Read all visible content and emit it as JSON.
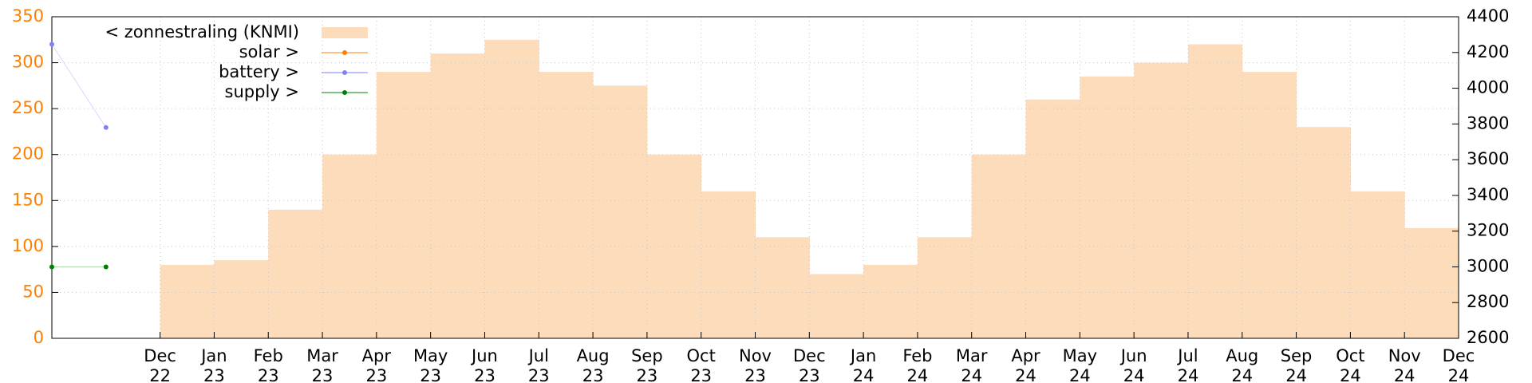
{
  "chart_data": {
    "type": "area",
    "xlim": [
      "2022-10",
      "2024-12"
    ],
    "xticks": [
      {
        "value": "2022-12",
        "label": [
          "Dec",
          "22"
        ]
      },
      {
        "value": "2023-01",
        "label": [
          "Jan",
          "23"
        ]
      },
      {
        "value": "2023-02",
        "label": [
          "Feb",
          "23"
        ]
      },
      {
        "value": "2023-03",
        "label": [
          "Mar",
          "23"
        ]
      },
      {
        "value": "2023-04",
        "label": [
          "Apr",
          "23"
        ]
      },
      {
        "value": "2023-05",
        "label": [
          "May",
          "23"
        ]
      },
      {
        "value": "2023-06",
        "label": [
          "Jun",
          "23"
        ]
      },
      {
        "value": "2023-07",
        "label": [
          "Jul",
          "23"
        ]
      },
      {
        "value": "2023-08",
        "label": [
          "Aug",
          "23"
        ]
      },
      {
        "value": "2023-09",
        "label": [
          "Sep",
          "23"
        ]
      },
      {
        "value": "2023-10",
        "label": [
          "Oct",
          "23"
        ]
      },
      {
        "value": "2023-11",
        "label": [
          "Nov",
          "23"
        ]
      },
      {
        "value": "2023-12",
        "label": [
          "Dec",
          "23"
        ]
      },
      {
        "value": "2024-01",
        "label": [
          "Jan",
          "24"
        ]
      },
      {
        "value": "2024-02",
        "label": [
          "Feb",
          "24"
        ]
      },
      {
        "value": "2024-03",
        "label": [
          "Mar",
          "24"
        ]
      },
      {
        "value": "2024-04",
        "label": [
          "Apr",
          "24"
        ]
      },
      {
        "value": "2024-05",
        "label": [
          "May",
          "24"
        ]
      },
      {
        "value": "2024-06",
        "label": [
          "Jun",
          "24"
        ]
      },
      {
        "value": "2024-07",
        "label": [
          "Jul",
          "24"
        ]
      },
      {
        "value": "2024-08",
        "label": [
          "Aug",
          "24"
        ]
      },
      {
        "value": "2024-09",
        "label": [
          "Sep",
          "24"
        ]
      },
      {
        "value": "2024-10",
        "label": [
          "Oct",
          "24"
        ]
      },
      {
        "value": "2024-11",
        "label": [
          "Nov",
          "24"
        ]
      },
      {
        "value": "2024-12",
        "label": [
          "Dec",
          "24"
        ]
      }
    ],
    "ylim": [
      0,
      350
    ],
    "yticks": [
      0,
      50,
      100,
      150,
      200,
      250,
      300,
      350
    ],
    "y2lim": [
      2600,
      4400
    ],
    "y2ticks": [
      2600,
      2800,
      3000,
      3200,
      3400,
      3600,
      3800,
      4000,
      4200,
      4400
    ],
    "grid": true,
    "legend": "top-left",
    "series": [
      {
        "name": "< zonnestraling (KNMI)",
        "color": "#fddcbc",
        "x": [
          "2022-12",
          "2023-01",
          "2023-02",
          "2023-03",
          "2023-04",
          "2023-05",
          "2023-06",
          "2023-07",
          "2023-08",
          "2023-09",
          "2023-10",
          "2023-11",
          "2023-12",
          "2024-01",
          "2024-02",
          "2024-03",
          "2024-04",
          "2024-05",
          "2024-06",
          "2024-07",
          "2024-08",
          "2024-09",
          "2024-10",
          "2024-11"
        ],
        "values": [
          80,
          85,
          140,
          200,
          290,
          310,
          325,
          290,
          275,
          200,
          160,
          110,
          70,
          80,
          110,
          200,
          260,
          285,
          300,
          320,
          290,
          230,
          160,
          120
        ]
      },
      {
        "name": "solar >",
        "color": "#ff8000",
        "axis": "y2",
        "x": [],
        "values": []
      },
      {
        "name": "battery >",
        "color": "#8080ff",
        "axis": "y2",
        "x": [
          "2022-10",
          "2022-11"
        ],
        "values": [
          4246,
          3780
        ]
      },
      {
        "name": "supply >",
        "color": "#008000",
        "axis": "y2",
        "x": [
          "2022-10",
          "2022-11"
        ],
        "values": [
          3000,
          3000
        ]
      }
    ]
  }
}
